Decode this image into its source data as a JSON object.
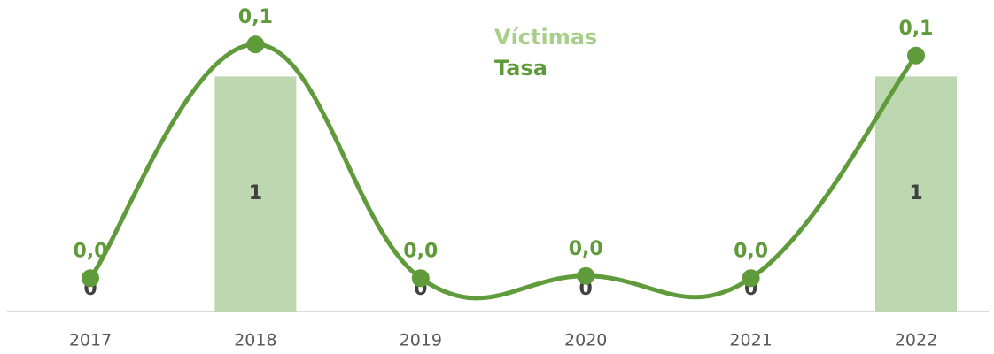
{
  "chart_data": {
    "type": "bar+line",
    "categories": [
      "2017",
      "2018",
      "2019",
      "2020",
      "2021",
      "2022"
    ],
    "series": [
      {
        "name": "Víctimas",
        "type": "bar",
        "color": "#bdd7b0",
        "legend_color": "#a8cf8a",
        "values": [
          0,
          1,
          0,
          0,
          0,
          1
        ]
      },
      {
        "name": "Tasa",
        "type": "line",
        "axis": "y2",
        "color": "#5f9b3a",
        "values": [
          0,
          0.105,
          0,
          0.001,
          0,
          0.1
        ],
        "value_labels": [
          "0,0",
          "0,1",
          "0,0",
          "0,0",
          "0,0",
          "0,1"
        ]
      }
    ],
    "ylim": [
      0,
      1.25
    ],
    "y2lim": [
      -0.015,
      0.117
    ],
    "grid": false,
    "legend": "top"
  }
}
